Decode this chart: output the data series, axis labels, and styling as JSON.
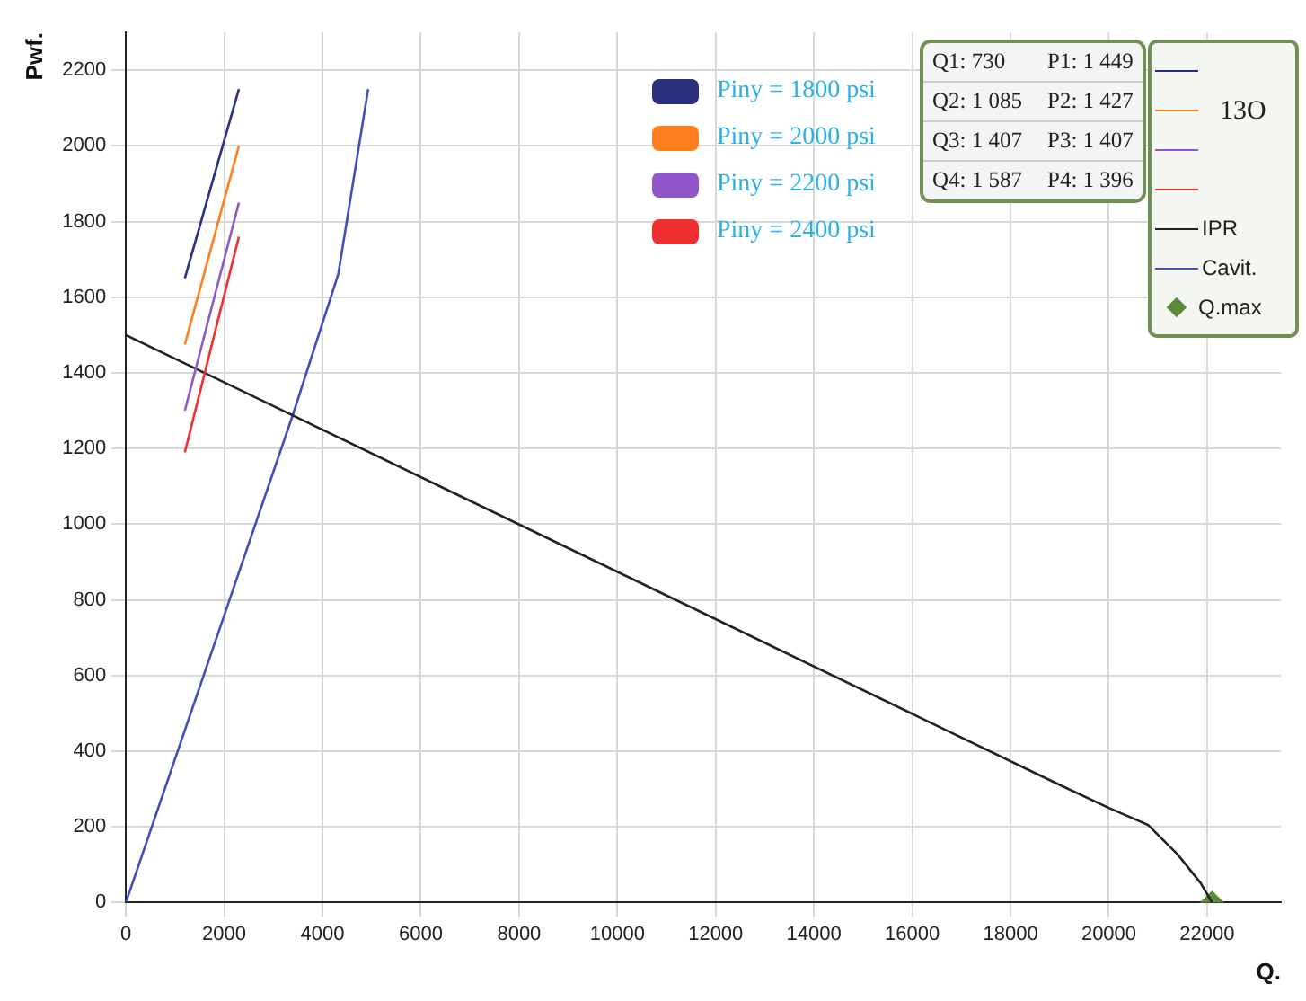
{
  "chart_data": {
    "type": "line",
    "xlabel": "Q.",
    "ylabel": "Pwf.",
    "legend_title": "13O",
    "xlim": [
      0,
      23500
    ],
    "ylim": [
      0,
      2300
    ],
    "xticks": [
      0,
      2000,
      4000,
      6000,
      8000,
      10000,
      12000,
      14000,
      16000,
      18000,
      20000,
      22000
    ],
    "yticks": [
      0,
      200,
      400,
      600,
      800,
      1000,
      1200,
      1400,
      1600,
      1800,
      2000,
      2200
    ],
    "grid": true,
    "legend": "top right",
    "marker": "none",
    "line_style": "solid",
    "annotations": [
      "Q1: 730",
      "P1: 1 449",
      "Q2: 1 085",
      "P2: 1 427",
      "Q3: 1 407",
      "P3: 1 407",
      "Q4: 1 587",
      "P4: 1 396"
    ],
    "series": [
      {
        "name": "Piny = 1800 psi",
        "color": "#2a2f7e",
        "x": [
          1200,
          2300
        ],
        "values": [
          1650,
          2150
        ]
      },
      {
        "name": "Piny = 2000 psi",
        "color": "#ff7f1e",
        "x": [
          1200,
          2300
        ],
        "values": [
          1475,
          2000
        ]
      },
      {
        "name": "Piny = 2200 psi",
        "color": "#9055c8",
        "x": [
          1200,
          2300
        ],
        "values": [
          1300,
          1850
        ]
      },
      {
        "name": "Piny = 2400 psi",
        "color": "#f03030",
        "x": [
          1200,
          2300
        ],
        "values": [
          1190,
          1760
        ]
      },
      {
        "name": "IPR",
        "color": "#222222",
        "x": [
          0,
          19000,
          20000,
          20800,
          21400,
          21870,
          22100
        ],
        "values": [
          1500,
          311,
          250,
          205,
          127,
          51,
          0
        ]
      },
      {
        "name": "Cavit.",
        "color": "#4050b8",
        "x": [
          0,
          3400,
          4320,
          4930
        ],
        "values": [
          0,
          1290,
          1660,
          2150
        ]
      },
      {
        "name": "Q.max",
        "type": "scatter",
        "marker": "diamond",
        "color": "#5a8a3a",
        "x": [
          22100
        ],
        "values": [
          0
        ]
      }
    ]
  }
}
